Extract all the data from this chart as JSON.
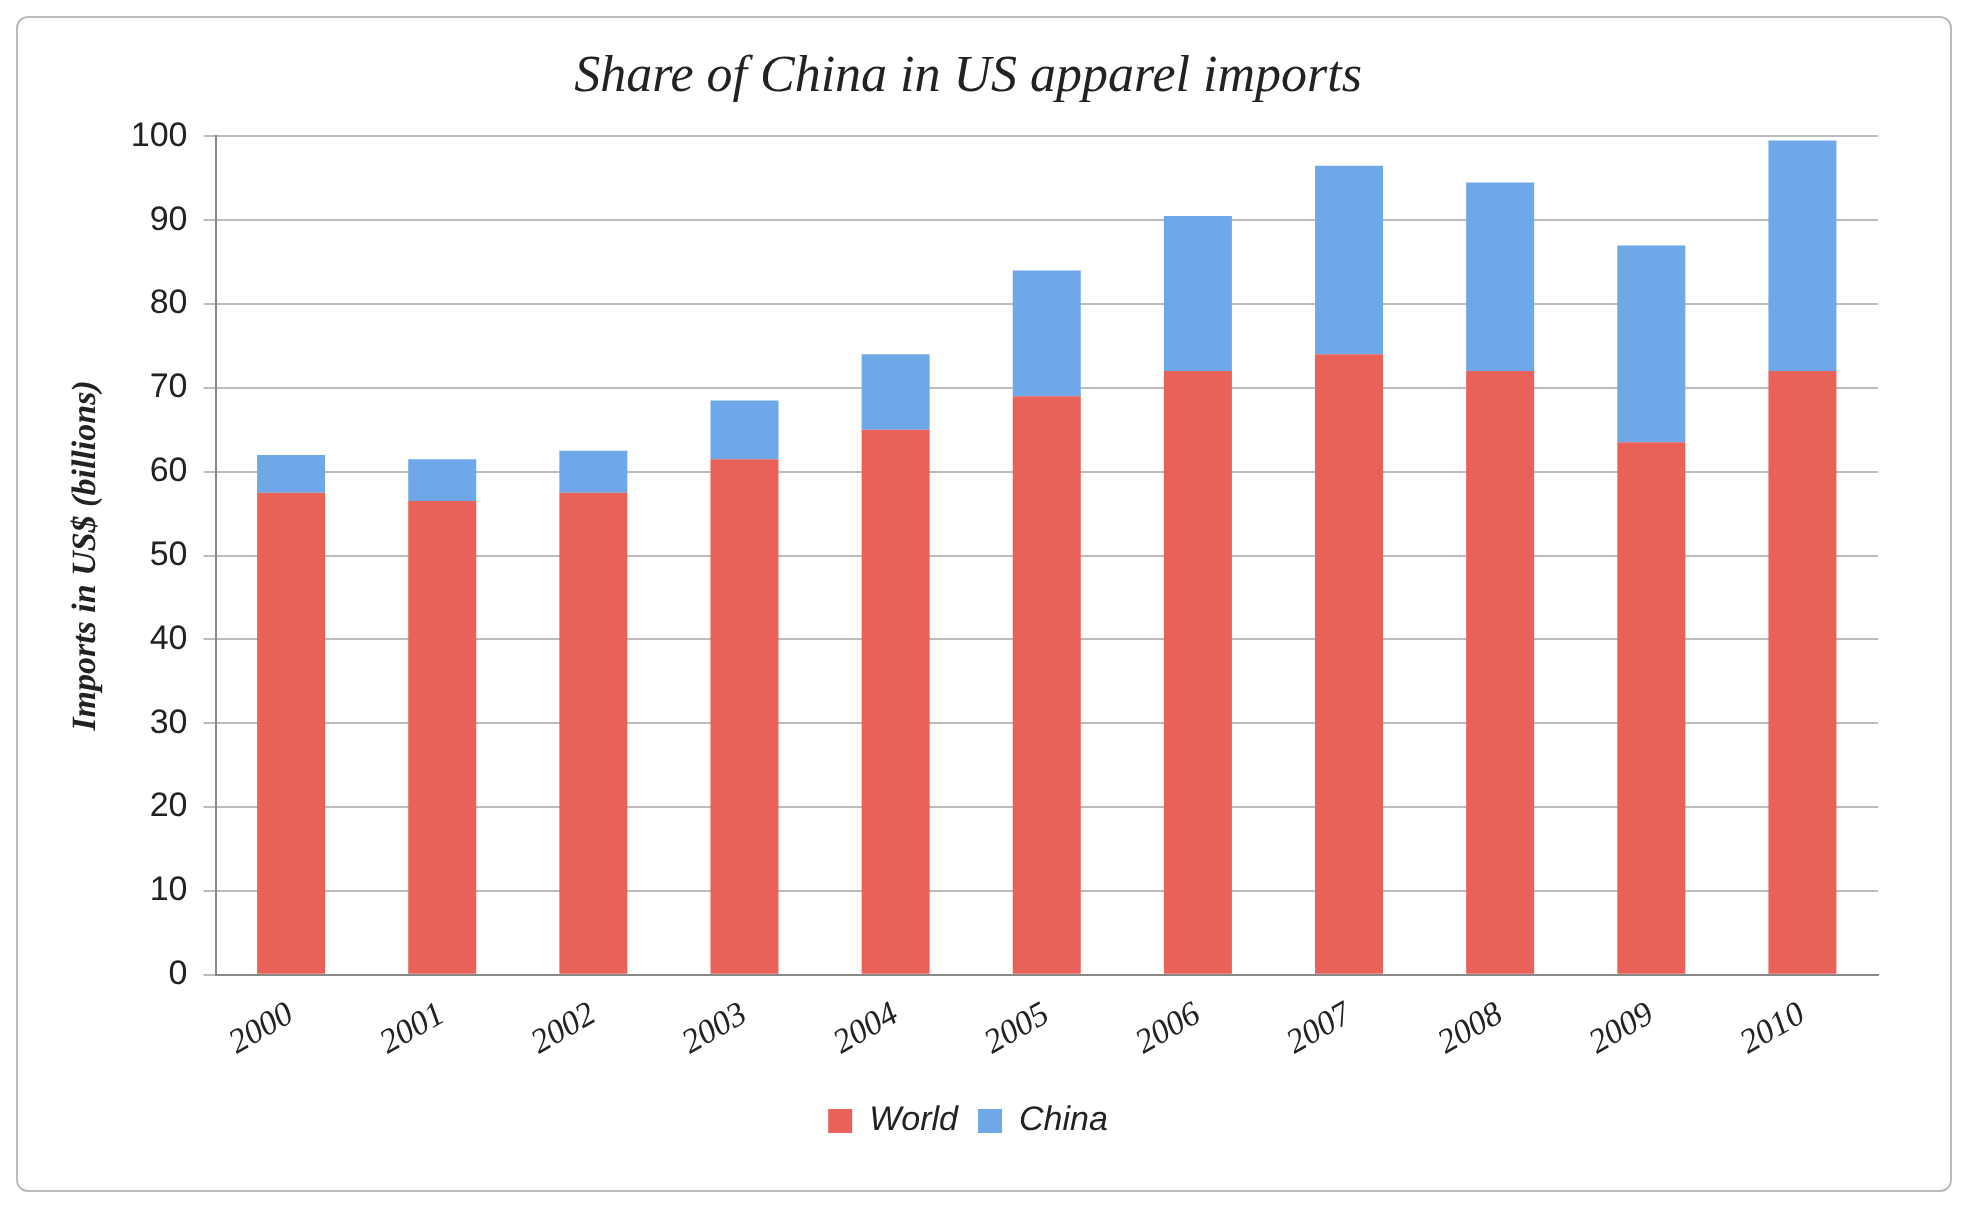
{
  "chart_data": {
    "type": "bar",
    "title": "Share of China in US apparel imports",
    "ylabel": "Imports in US$ (billions)",
    "categories": [
      "2000",
      "2001",
      "2002",
      "2003",
      "2004",
      "2005",
      "2006",
      "2007",
      "2008",
      "2009",
      "2010"
    ],
    "series": [
      {
        "name": "World",
        "color": "#e8625a",
        "values": [
          57.5,
          56.5,
          57.5,
          61.5,
          65,
          69,
          72,
          74,
          72,
          63.5,
          72
        ]
      },
      {
        "name": "China",
        "color": "#6fa8e8",
        "values": [
          4.5,
          5,
          5,
          7,
          9,
          15,
          18.5,
          22.5,
          22.5,
          23.5,
          27.5
        ]
      }
    ],
    "stacked": true,
    "ylim": [
      0,
      100
    ],
    "yticks": [
      0,
      10,
      20,
      30,
      40,
      50,
      60,
      70,
      80,
      90,
      100
    ],
    "grid": "y",
    "legend": "bottom"
  }
}
